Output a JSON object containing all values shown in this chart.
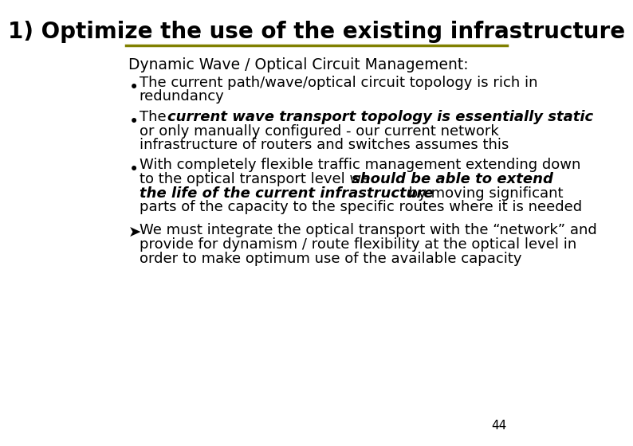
{
  "title": "1) Optimize the use of the existing infrastructure",
  "title_fontsize": 20,
  "title_bg_color": "#ffffff",
  "title_text_color": "#000000",
  "underline_color": "#808000",
  "bg_color": "#ffffff",
  "subtitle": "Dynamic Wave / Optical Circuit Management:",
  "subtitle_fontsize": 13.5,
  "bullet_fontsize": 13,
  "page_number": "44",
  "bullets": [
    {
      "parts": [
        {
          "text": "The current path/wave/optical circuit topology is rich in\nredundancy",
          "bold": false,
          "italic": false
        }
      ]
    },
    {
      "parts": [
        {
          "text": "The ",
          "bold": false,
          "italic": false
        },
        {
          "text": "current wave transport topology is essentially static",
          "bold": true,
          "italic": true
        },
        {
          "text": "\nor only manually configured - our current network\ninfrastructure of routers and switches assumes this",
          "bold": false,
          "italic": false
        }
      ]
    },
    {
      "parts": [
        {
          "text": "With completely flexible traffic management extending down\nto the optical transport level we ",
          "bold": false,
          "italic": false
        },
        {
          "text": "should be able to extend\nthe life of the current infrastructure",
          "bold": true,
          "italic": true
        },
        {
          "text": " by moving significant\nparts of the capacity to the specific routes where it is needed",
          "bold": false,
          "italic": false
        }
      ]
    }
  ],
  "arrow_text_parts": [
    {
      "text": "We must integrate the optical transport with the “network” and\nprovide for dynamism / route flexibility at the optical level in\norder to make optimum use of the available capacity",
      "bold": false,
      "italic": false
    }
  ]
}
